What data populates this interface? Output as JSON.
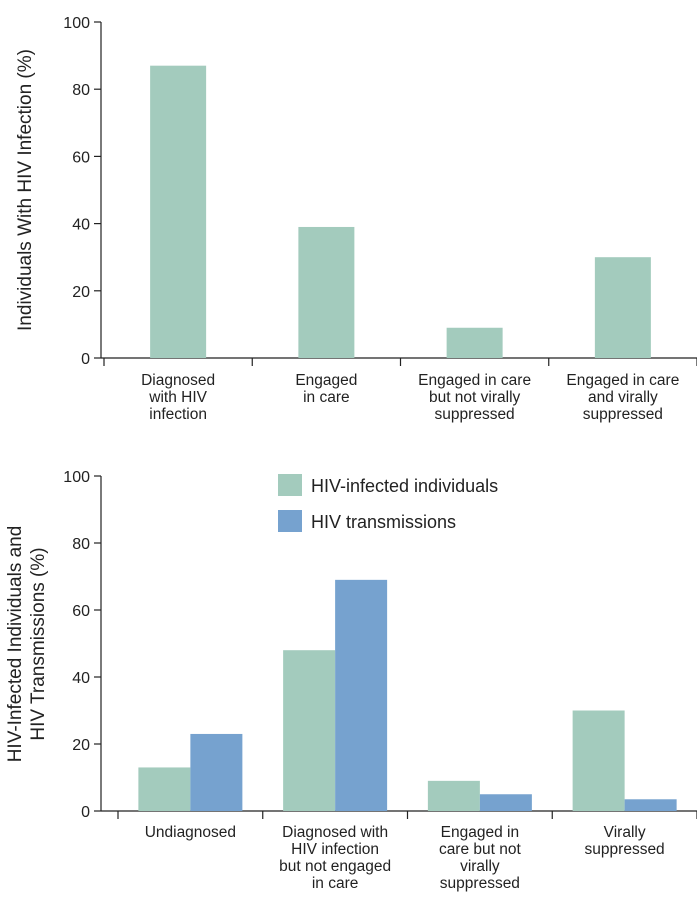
{
  "colors": {
    "infected": "#a3cbbd",
    "transmissions": "#76a2cf",
    "axis": "#222222"
  },
  "chart_data": [
    {
      "type": "bar",
      "title": "",
      "ylabel": "Individuals With HIV Infection (%)",
      "xlabel": "",
      "ylim": [
        0,
        100
      ],
      "yticks": [
        "0",
        "20",
        "40",
        "60",
        "80",
        "100"
      ],
      "categories": [
        [
          "Diagnosed",
          "with HIV",
          "infection"
        ],
        [
          "Engaged",
          "in care"
        ],
        [
          "Engaged in care",
          "but not virally",
          "suppressed"
        ],
        [
          "Engaged in care",
          "and virally",
          "suppressed"
        ]
      ],
      "series": [
        {
          "values": [
            87,
            39,
            9,
            30
          ]
        }
      ],
      "grid": false
    },
    {
      "type": "bar",
      "title": "",
      "ylabel": [
        "HIV-Infected Individuals and",
        "HIV Transmissions (%)"
      ],
      "xlabel": "",
      "ylim": [
        0,
        100
      ],
      "yticks": [
        "0",
        "20",
        "40",
        "60",
        "80",
        "100"
      ],
      "categories": [
        [
          "Undiagnosed"
        ],
        [
          "Diagnosed with",
          "HIV infection",
          "but not engaged",
          "in care"
        ],
        [
          "Engaged in",
          "care but not",
          "virally",
          "suppressed"
        ],
        [
          "Virally",
          "suppressed"
        ]
      ],
      "series": [
        {
          "name": "HIV-infected individuals",
          "values": [
            13,
            48,
            9,
            30
          ]
        },
        {
          "name": "HIV transmissions",
          "values": [
            23,
            69,
            5,
            3.5
          ]
        }
      ],
      "legend": "top-center",
      "grid": false
    }
  ]
}
